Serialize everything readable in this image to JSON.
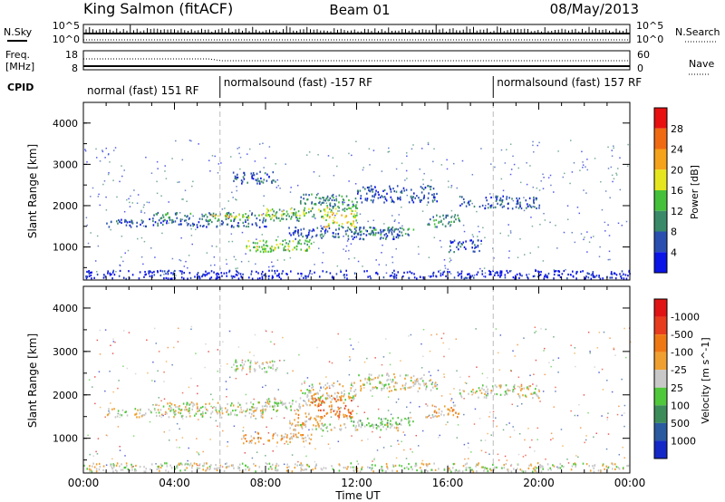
{
  "header": {
    "station": "King Salmon (fitACF)",
    "beam": "Beam 01",
    "date": "08/May/2013"
  },
  "status_panels": {
    "nsky": {
      "label": "N.Sky",
      "ticks": [
        "10^5",
        "10^0"
      ]
    },
    "nsearch": {
      "label": "N.Search",
      "ticks": [
        "10^5",
        "10^0"
      ]
    },
    "freq": {
      "label_line1": "Freq.",
      "label_line2": "[MHz]",
      "ticks": [
        "18",
        "8"
      ]
    },
    "nave": {
      "label": "Nave",
      "ticks": [
        "60",
        "0"
      ]
    },
    "cpid": {
      "label": "CPID",
      "segments": [
        {
          "name": "normal (fast) 151 RF",
          "start_hour": 0,
          "end_hour": 6
        },
        {
          "name": "normalsound (fast) -157 RF",
          "start_hour": 6,
          "end_hour": 18
        },
        {
          "name": "normalsound (fast) 157 RF",
          "start_hour": 18,
          "end_hour": 24
        }
      ]
    }
  },
  "x_axis": {
    "label": "Time UT",
    "tick_labels": [
      "00:00",
      "04:00",
      "08:00",
      "12:00",
      "16:00",
      "20:00",
      "00:00"
    ]
  },
  "chart_data": [
    {
      "type": "heatmap",
      "panel": "power",
      "xlabel": "Time UT",
      "ylabel": "Slant Range [km]",
      "xlim_hours": [
        0,
        24
      ],
      "ylim_km": [
        200,
        4500
      ],
      "y_ticks": [
        "1000",
        "2000",
        "3000",
        "4000"
      ],
      "colorbar": {
        "label": "Power [dB]",
        "tick_labels": [
          "4",
          "8",
          "12",
          "16",
          "20",
          "24",
          "28"
        ],
        "colors": [
          "#0a14e6",
          "#2a4fb0",
          "#3a8a6a",
          "#44c03a",
          "#e6e61e",
          "#f5a21c",
          "#f06a12",
          "#e81010"
        ]
      },
      "regions": [
        {
          "t0": 1.0,
          "t1": 8.0,
          "r0": 1500,
          "r1": 1700,
          "level": 1
        },
        {
          "t0": 3.0,
          "t1": 9.5,
          "r0": 1650,
          "r1": 1850,
          "level": 2
        },
        {
          "t0": 5.5,
          "t1": 8.5,
          "r0": 1720,
          "r1": 1800,
          "level": 4
        },
        {
          "t0": 8.0,
          "t1": 10.5,
          "r0": 1750,
          "r1": 1950,
          "level": 3
        },
        {
          "t0": 9.5,
          "t1": 12.0,
          "r0": 1900,
          "r1": 2300,
          "level": 2
        },
        {
          "t0": 10.5,
          "t1": 12.0,
          "r0": 1500,
          "r1": 2000,
          "level": 4
        },
        {
          "t0": 7.0,
          "t1": 10.0,
          "r0": 900,
          "r1": 1200,
          "level": 3
        },
        {
          "t0": 7.5,
          "t1": 9.0,
          "r0": 950,
          "r1": 1050,
          "level": 4
        },
        {
          "t0": 9.0,
          "t1": 14.0,
          "r0": 1200,
          "r1": 1500,
          "level": 1
        },
        {
          "t0": 11.5,
          "t1": 14.5,
          "r0": 1300,
          "r1": 1500,
          "level": 2
        },
        {
          "t0": 12.0,
          "t1": 15.5,
          "r0": 2100,
          "r1": 2500,
          "level": 1
        },
        {
          "t0": 6.5,
          "t1": 8.5,
          "r0": 2550,
          "r1": 2850,
          "level": 1
        },
        {
          "t0": 15.0,
          "t1": 16.5,
          "r0": 1500,
          "r1": 1800,
          "level": 2
        },
        {
          "t0": 16.0,
          "t1": 17.5,
          "r0": 900,
          "r1": 1200,
          "level": 1
        },
        {
          "t0": 16.5,
          "t1": 20.0,
          "r0": 1950,
          "r1": 2250,
          "level": 1
        },
        {
          "t0": 0.0,
          "t1": 24.0,
          "r0": 250,
          "r1": 450,
          "level": 0
        }
      ]
    },
    {
      "type": "heatmap",
      "panel": "velocity",
      "xlabel": "Time UT",
      "ylabel": "Slant Range [km]",
      "xlim_hours": [
        0,
        24
      ],
      "ylim_km": [
        200,
        4500
      ],
      "y_ticks": [
        "1000",
        "2000",
        "3000",
        "4000"
      ],
      "colorbar": {
        "label": "Velocity [m s^-1]",
        "tick_labels": [
          "1000",
          "500",
          "100",
          "25",
          "-25",
          "-100",
          "-500",
          "-1000"
        ],
        "colors": [
          "#1428c8",
          "#2a5aa0",
          "#3c8c5a",
          "#50c83c",
          "#c8c8c8",
          "#f0a030",
          "#f07814",
          "#e83c1e",
          "#e01414"
        ]
      },
      "regions": [
        {
          "t0": 1.0,
          "t1": 8.0,
          "r0": 1500,
          "r1": 1700,
          "level": 4
        },
        {
          "t0": 3.0,
          "t1": 9.5,
          "r0": 1650,
          "r1": 1850,
          "level": 4
        },
        {
          "t0": 8.0,
          "t1": 10.5,
          "r0": 1750,
          "r1": 1950,
          "level": 4
        },
        {
          "t0": 9.5,
          "t1": 12.0,
          "r0": 1900,
          "r1": 2300,
          "level": 4
        },
        {
          "t0": 10.0,
          "t1": 11.8,
          "r0": 1500,
          "r1": 2000,
          "level": 6
        },
        {
          "t0": 9.0,
          "t1": 10.5,
          "r0": 1300,
          "r1": 1600,
          "level": 5
        },
        {
          "t0": 7.0,
          "t1": 10.0,
          "r0": 900,
          "r1": 1150,
          "level": 5
        },
        {
          "t0": 11.5,
          "t1": 14.5,
          "r0": 1300,
          "r1": 1500,
          "level": 3
        },
        {
          "t0": 9.0,
          "t1": 14.0,
          "r0": 1200,
          "r1": 1350,
          "level": 4
        },
        {
          "t0": 12.0,
          "t1": 15.5,
          "r0": 2100,
          "r1": 2500,
          "level": 4
        },
        {
          "t0": 6.5,
          "t1": 8.5,
          "r0": 2550,
          "r1": 2850,
          "level": 4
        },
        {
          "t0": 15.0,
          "t1": 16.5,
          "r0": 1500,
          "r1": 1800,
          "level": 5
        },
        {
          "t0": 16.5,
          "t1": 20.0,
          "r0": 1950,
          "r1": 2250,
          "level": 4
        },
        {
          "t0": 0.0,
          "t1": 24.0,
          "r0": 250,
          "r1": 450,
          "level": 4
        }
      ]
    }
  ]
}
